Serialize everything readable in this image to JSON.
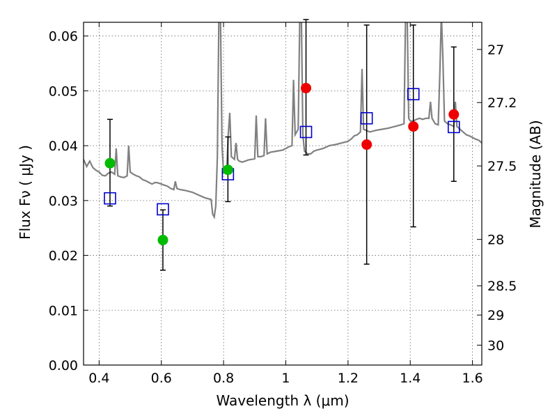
{
  "chart_data": {
    "type": "scatter",
    "xlabel": "Wavelength  λ (μm)",
    "ylabel": "Flux  Fν  ( μJy )",
    "y2label": "Magnitude (AB)",
    "xlim": [
      0.35,
      1.63
    ],
    "ylim": [
      0,
      0.0625
    ],
    "x_ticks": [
      "0.4",
      "0.6",
      "0.8",
      "1",
      "1.2",
      "1.4",
      "1.6"
    ],
    "x_tick_values": [
      0.4,
      0.6,
      0.8,
      1.0,
      1.2,
      1.4,
      1.6
    ],
    "y_ticks": [
      "0.00",
      "0.01",
      "0.02",
      "0.03",
      "0.04",
      "0.05",
      "0.06"
    ],
    "y_tick_values": [
      0.0,
      0.01,
      0.02,
      0.03,
      0.04,
      0.05,
      0.06
    ],
    "y2_ticks": [
      "27",
      "27.2",
      "27.5",
      "28",
      "28.5",
      "29",
      "30"
    ],
    "y2_tick_values": [
      27,
      27.2,
      27.5,
      28,
      28.5,
      29,
      30
    ],
    "grid": true,
    "colors": {
      "model": "#808080",
      "green_points": "#00bb00",
      "red_points": "#ee0000",
      "model_boxes": "#0000cc",
      "errorbars": "#000000"
    },
    "series": [
      {
        "kind": "errorbar-points",
        "color": "green",
        "points": [
          {
            "x": 0.435,
            "y": 0.0368,
            "yerr_low": 0.0078,
            "yerr_high": 0.008
          },
          {
            "x": 0.605,
            "y": 0.0228,
            "yerr_low": 0.0055,
            "yerr_high": 0.0055
          },
          {
            "x": 0.814,
            "y": 0.0356,
            "yerr_low": 0.0058,
            "yerr_high": 0.006
          }
        ]
      },
      {
        "kind": "errorbar-points",
        "color": "red",
        "points": [
          {
            "x": 1.065,
            "y": 0.0505,
            "yerr_low": 0.0122,
            "yerr_high": 0.0125
          },
          {
            "x": 1.26,
            "y": 0.0402,
            "yerr_low": 0.0218,
            "yerr_high": 0.0218
          },
          {
            "x": 1.41,
            "y": 0.0435,
            "yerr_low": 0.0183,
            "yerr_high": 0.0185
          },
          {
            "x": 1.54,
            "y": 0.0457,
            "yerr_low": 0.0122,
            "yerr_high": 0.0123
          }
        ]
      },
      {
        "kind": "model-boxes",
        "points": [
          {
            "x": 0.435,
            "y": 0.0304
          },
          {
            "x": 0.605,
            "y": 0.0284
          },
          {
            "x": 0.814,
            "y": 0.0348
          },
          {
            "x": 1.065,
            "y": 0.0425
          },
          {
            "x": 1.26,
            "y": 0.045
          },
          {
            "x": 1.41,
            "y": 0.0494
          },
          {
            "x": 1.54,
            "y": 0.0434
          }
        ]
      },
      {
        "kind": "model-spectrum",
        "points": [
          [
            0.35,
            0.0375
          ],
          [
            0.36,
            0.0362
          ],
          [
            0.37,
            0.0372
          ],
          [
            0.38,
            0.036
          ],
          [
            0.39,
            0.0355
          ],
          [
            0.4,
            0.0352
          ],
          [
            0.41,
            0.0346
          ],
          [
            0.42,
            0.0345
          ],
          [
            0.43,
            0.035
          ],
          [
            0.44,
            0.0352
          ],
          [
            0.45,
            0.0348
          ],
          [
            0.455,
            0.0395
          ],
          [
            0.46,
            0.0345
          ],
          [
            0.47,
            0.0343
          ],
          [
            0.48,
            0.0342
          ],
          [
            0.49,
            0.0345
          ],
          [
            0.495,
            0.04
          ],
          [
            0.5,
            0.0352
          ],
          [
            0.51,
            0.0348
          ],
          [
            0.52,
            0.0345
          ],
          [
            0.53,
            0.0343
          ],
          [
            0.54,
            0.0338
          ],
          [
            0.55,
            0.0336
          ],
          [
            0.56,
            0.0333
          ],
          [
            0.57,
            0.033
          ],
          [
            0.58,
            0.0333
          ],
          [
            0.59,
            0.0332
          ],
          [
            0.6,
            0.033
          ],
          [
            0.61,
            0.0328
          ],
          [
            0.62,
            0.0326
          ],
          [
            0.63,
            0.0322
          ],
          [
            0.64,
            0.032
          ],
          [
            0.645,
            0.0335
          ],
          [
            0.65,
            0.0322
          ],
          [
            0.66,
            0.032
          ],
          [
            0.68,
            0.0318
          ],
          [
            0.7,
            0.0315
          ],
          [
            0.72,
            0.031
          ],
          [
            0.74,
            0.0305
          ],
          [
            0.76,
            0.0302
          ],
          [
            0.765,
            0.0275
          ],
          [
            0.77,
            0.027
          ],
          [
            0.775,
            0.029
          ],
          [
            0.78,
            0.038
          ],
          [
            0.785,
            0.064
          ],
          [
            0.79,
            0.064
          ],
          [
            0.795,
            0.04
          ],
          [
            0.8,
            0.035
          ],
          [
            0.81,
            0.0352
          ],
          [
            0.815,
            0.042
          ],
          [
            0.82,
            0.046
          ],
          [
            0.825,
            0.038
          ],
          [
            0.835,
            0.0375
          ],
          [
            0.84,
            0.0405
          ],
          [
            0.845,
            0.0375
          ],
          [
            0.85,
            0.0372
          ],
          [
            0.86,
            0.037
          ],
          [
            0.87,
            0.0372
          ],
          [
            0.88,
            0.0374
          ],
          [
            0.89,
            0.0375
          ],
          [
            0.9,
            0.0376
          ],
          [
            0.905,
            0.0455
          ],
          [
            0.91,
            0.038
          ],
          [
            0.92,
            0.038
          ],
          [
            0.93,
            0.0382
          ],
          [
            0.935,
            0.045
          ],
          [
            0.94,
            0.0385
          ],
          [
            0.95,
            0.0388
          ],
          [
            0.97,
            0.039
          ],
          [
            0.99,
            0.0392
          ],
          [
            1.0,
            0.0395
          ],
          [
            1.01,
            0.0398
          ],
          [
            1.02,
            0.04
          ],
          [
            1.025,
            0.052
          ],
          [
            1.03,
            0.042
          ],
          [
            1.04,
            0.043
          ],
          [
            1.045,
            0.064
          ],
          [
            1.05,
            0.064
          ],
          [
            1.055,
            0.042
          ],
          [
            1.06,
            0.039
          ],
          [
            1.07,
            0.0385
          ],
          [
            1.08,
            0.0385
          ],
          [
            1.09,
            0.039
          ],
          [
            1.1,
            0.0392
          ],
          [
            1.12,
            0.0395
          ],
          [
            1.14,
            0.04
          ],
          [
            1.16,
            0.0402
          ],
          [
            1.18,
            0.0405
          ],
          [
            1.2,
            0.0408
          ],
          [
            1.21,
            0.0412
          ],
          [
            1.22,
            0.0418
          ],
          [
            1.23,
            0.042
          ],
          [
            1.24,
            0.0425
          ],
          [
            1.245,
            0.054
          ],
          [
            1.25,
            0.043
          ],
          [
            1.27,
            0.0425
          ],
          [
            1.29,
            0.0428
          ],
          [
            1.31,
            0.043
          ],
          [
            1.33,
            0.0432
          ],
          [
            1.35,
            0.0435
          ],
          [
            1.37,
            0.0438
          ],
          [
            1.38,
            0.044
          ],
          [
            1.385,
            0.064
          ],
          [
            1.39,
            0.064
          ],
          [
            1.395,
            0.045
          ],
          [
            1.4,
            0.0445
          ],
          [
            1.41,
            0.0445
          ],
          [
            1.42,
            0.0448
          ],
          [
            1.43,
            0.045
          ],
          [
            1.44,
            0.0448
          ],
          [
            1.45,
            0.045
          ],
          [
            1.46,
            0.045
          ],
          [
            1.465,
            0.048
          ],
          [
            1.47,
            0.045
          ],
          [
            1.48,
            0.044
          ],
          [
            1.49,
            0.0438
          ],
          [
            1.495,
            0.053
          ],
          [
            1.5,
            0.064
          ],
          [
            1.505,
            0.056
          ],
          [
            1.51,
            0.0445
          ],
          [
            1.52,
            0.044
          ],
          [
            1.53,
            0.0438
          ],
          [
            1.54,
            0.0435
          ],
          [
            1.545,
            0.048
          ],
          [
            1.55,
            0.0435
          ],
          [
            1.56,
            0.043
          ],
          [
            1.57,
            0.0425
          ],
          [
            1.58,
            0.042
          ],
          [
            1.59,
            0.0418
          ],
          [
            1.6,
            0.0415
          ],
          [
            1.61,
            0.0412
          ],
          [
            1.62,
            0.041
          ],
          [
            1.63,
            0.0405
          ]
        ]
      }
    ]
  }
}
